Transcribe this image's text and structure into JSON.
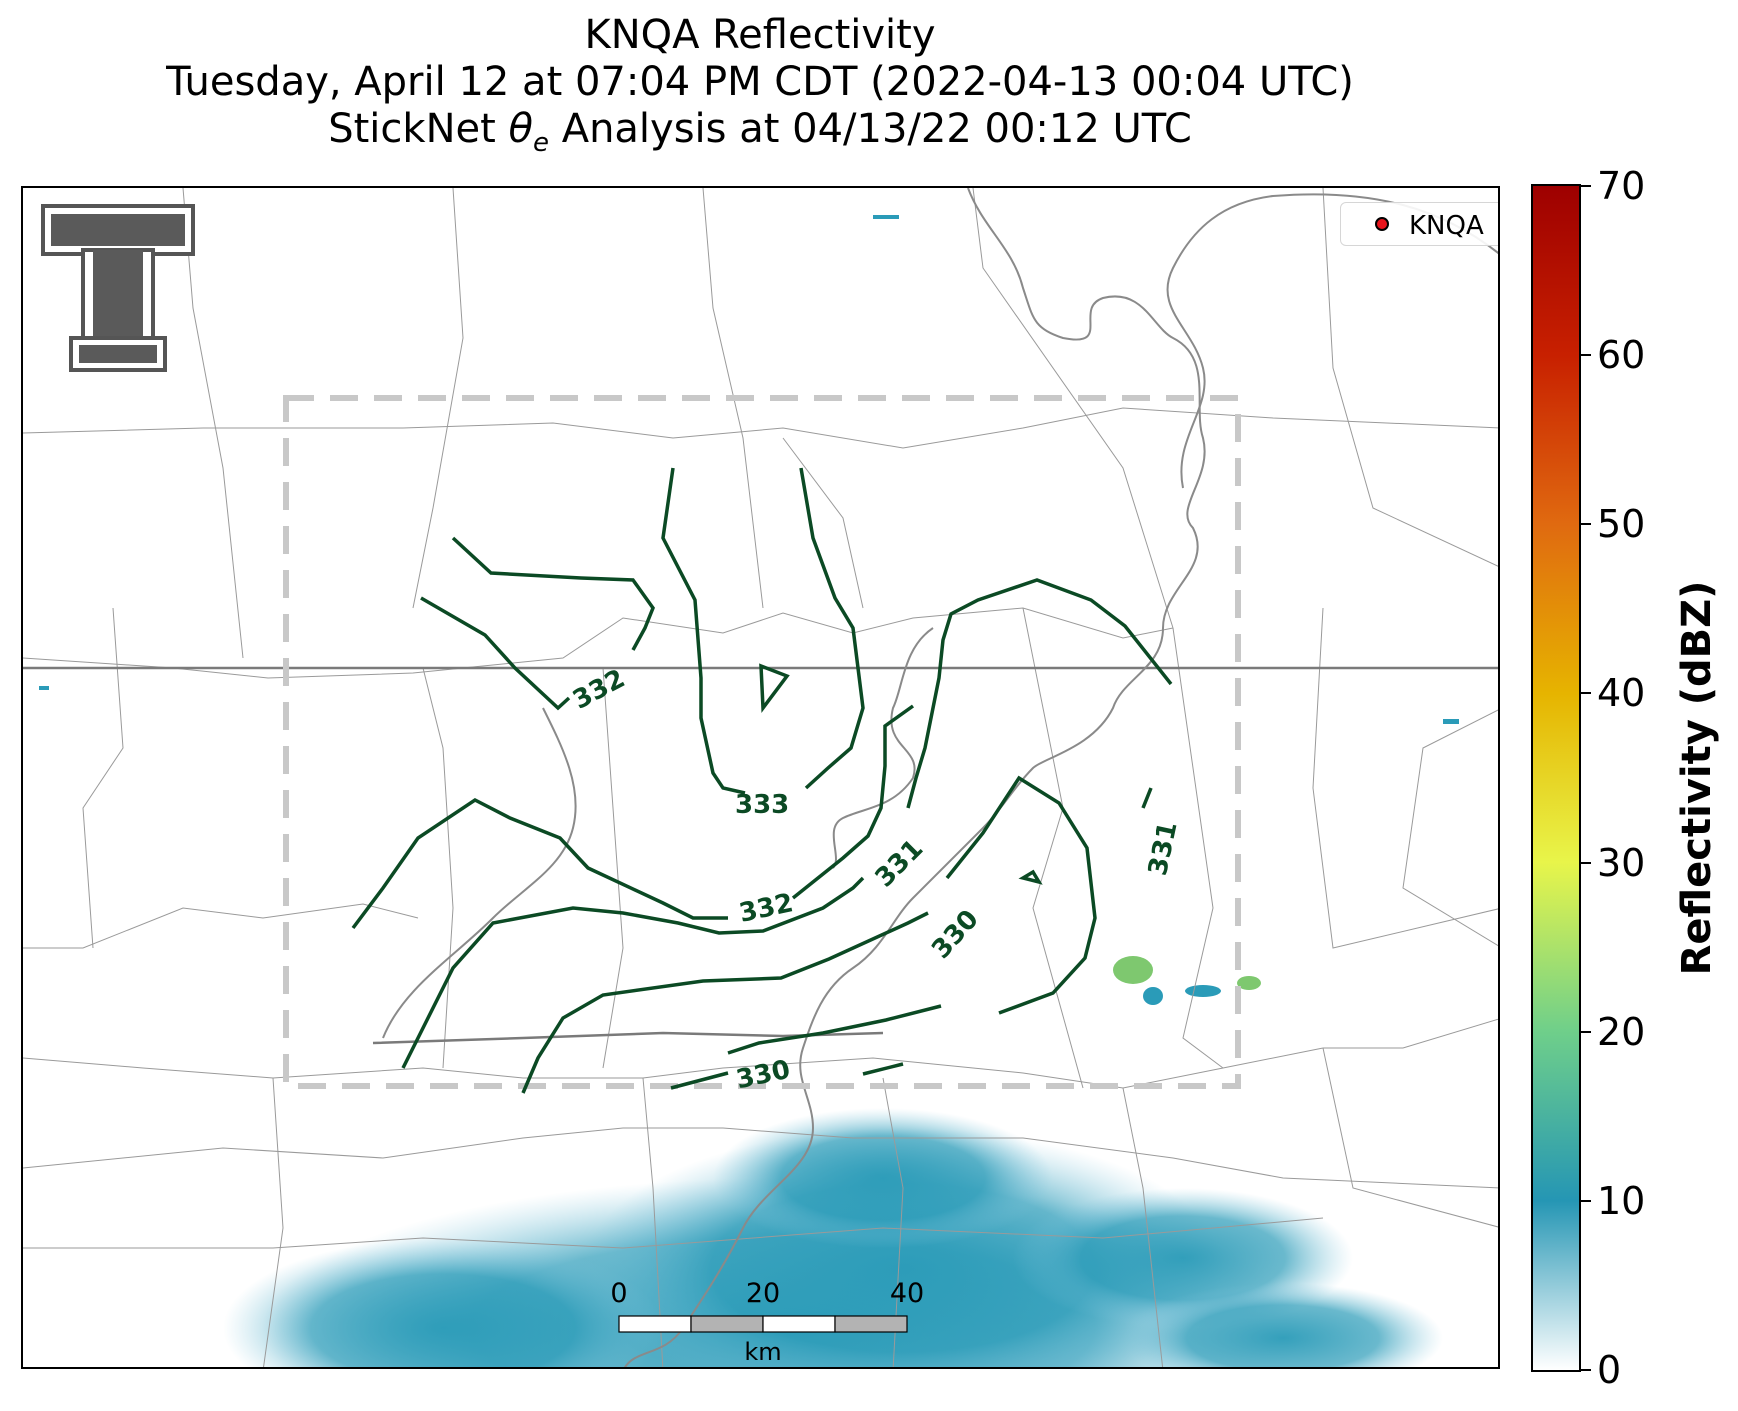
{
  "title": {
    "line1": "KNQA Reflectivity",
    "line2": "Tuesday, April 12 at 07:04 PM CDT (2022-04-13 00:04 UTC)",
    "line3_prefix": "StickNet ",
    "line3_theta": "θ",
    "line3_sub": "e",
    "line3_suffix": " Analysis at 04/13/22 00:12 UTC"
  },
  "legend": {
    "label": "KNQA",
    "marker_color": "#e8141c"
  },
  "colorbar": {
    "title": "Reflectivity (dBZ)",
    "min": 0,
    "max": 70,
    "ticks": [
      "0",
      "10",
      "20",
      "30",
      "40",
      "50",
      "60",
      "70"
    ],
    "colors": [
      "#ffffff",
      "#2596b4",
      "#6fcf8a",
      "#e8f54a",
      "#e6b400",
      "#e06a10",
      "#c82000",
      "#9e0000"
    ]
  },
  "contours": {
    "units": "K",
    "labels": [
      "332",
      "333",
      "332",
      "331",
      "330",
      "331",
      "330"
    ],
    "color": "#0b4a24"
  },
  "scale_bar": {
    "labels": [
      "0",
      "20",
      "40"
    ],
    "unit": "km"
  },
  "logo": {
    "name": "Texas Tech double-T logo",
    "text": "T"
  },
  "colors": {
    "contour": "#0b4a24",
    "state_border": "#777777",
    "county_border": "#9a9a9a",
    "river": "#808080",
    "analysis_box": "#c8c8c8",
    "echo": "#2a9bb8"
  }
}
